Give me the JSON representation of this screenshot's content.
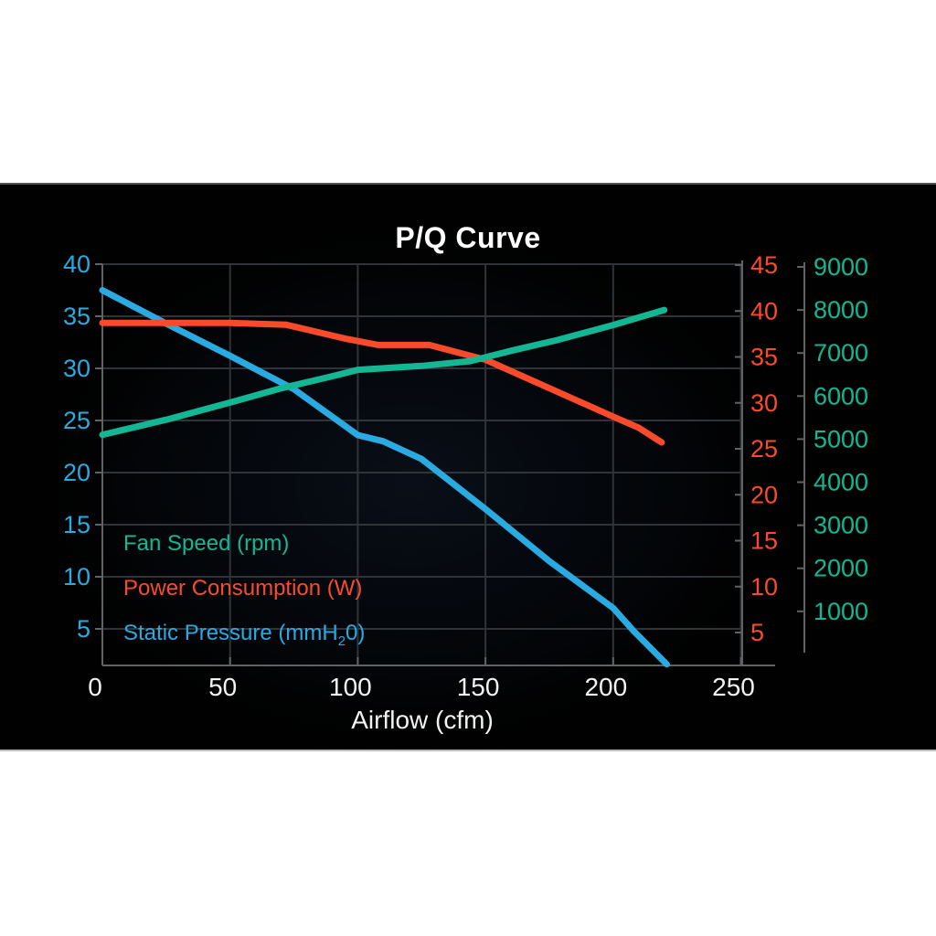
{
  "chart_data": {
    "type": "line",
    "title": "P/Q Curve",
    "xlabel": "Airflow (cfm)",
    "x_ticks": [
      0,
      50,
      100,
      150,
      200,
      250
    ],
    "x_range": [
      0,
      250
    ],
    "grid": true,
    "legend_position": "inside bottom-left",
    "background": "#010101",
    "grid_color": "#303438",
    "spine_color": "#606366",
    "x_tick_color": "#f2f2f2",
    "axes": {
      "static_pressure": {
        "side": "left",
        "color": "#29abe2",
        "ticks": [
          40,
          35,
          30,
          25,
          20,
          15,
          10,
          5
        ]
      },
      "power": {
        "side": "right",
        "color": "#f94b2c",
        "ticks": [
          45,
          40,
          35,
          30,
          25,
          20,
          15,
          10,
          5
        ]
      },
      "fan_speed": {
        "side": "far-right",
        "color": "#14b793",
        "ticks": [
          9000,
          8000,
          7000,
          6000,
          5000,
          4000,
          3000,
          2000,
          1000
        ]
      }
    },
    "series": [
      {
        "name": "Static Pressure (mmH20)",
        "axis": "static_pressure",
        "color": "#29abe2",
        "points": [
          [
            0,
            37.5
          ],
          [
            25,
            34.3
          ],
          [
            50,
            31.2
          ],
          [
            75,
            28.0
          ],
          [
            100,
            23.6
          ],
          [
            110,
            23.0
          ],
          [
            125,
            21.3
          ],
          [
            150,
            16.5
          ],
          [
            175,
            11.5
          ],
          [
            200,
            7.0
          ],
          [
            208,
            4.8
          ],
          [
            221,
            1.6
          ]
        ]
      },
      {
        "name": "Power Consumption (W)",
        "axis": "power",
        "color": "#f94b2c",
        "points": [
          [
            0,
            38.7
          ],
          [
            50,
            38.7
          ],
          [
            72,
            38.5
          ],
          [
            95,
            37.0
          ],
          [
            108,
            36.3
          ],
          [
            128,
            36.3
          ],
          [
            150,
            34.7
          ],
          [
            175,
            31.6
          ],
          [
            200,
            28.5
          ],
          [
            210,
            27.3
          ],
          [
            219,
            25.7
          ]
        ]
      },
      {
        "name": "Fan Speed (rpm)",
        "axis": "fan_speed",
        "color": "#14b793",
        "points": [
          [
            0,
            5100
          ],
          [
            25,
            5450
          ],
          [
            50,
            5850
          ],
          [
            70,
            6180
          ],
          [
            90,
            6460
          ],
          [
            100,
            6610
          ],
          [
            125,
            6700
          ],
          [
            144,
            6810
          ],
          [
            160,
            7050
          ],
          [
            178,
            7300
          ],
          [
            200,
            7650
          ],
          [
            220,
            8000
          ]
        ]
      }
    ],
    "legend": {
      "fan": "Fan Speed (rpm)",
      "power": "Power Consumption (W)",
      "pressure_prefix": "Static Pressure (mmH",
      "pressure_sub": "2",
      "pressure_suffix": "0)"
    }
  }
}
